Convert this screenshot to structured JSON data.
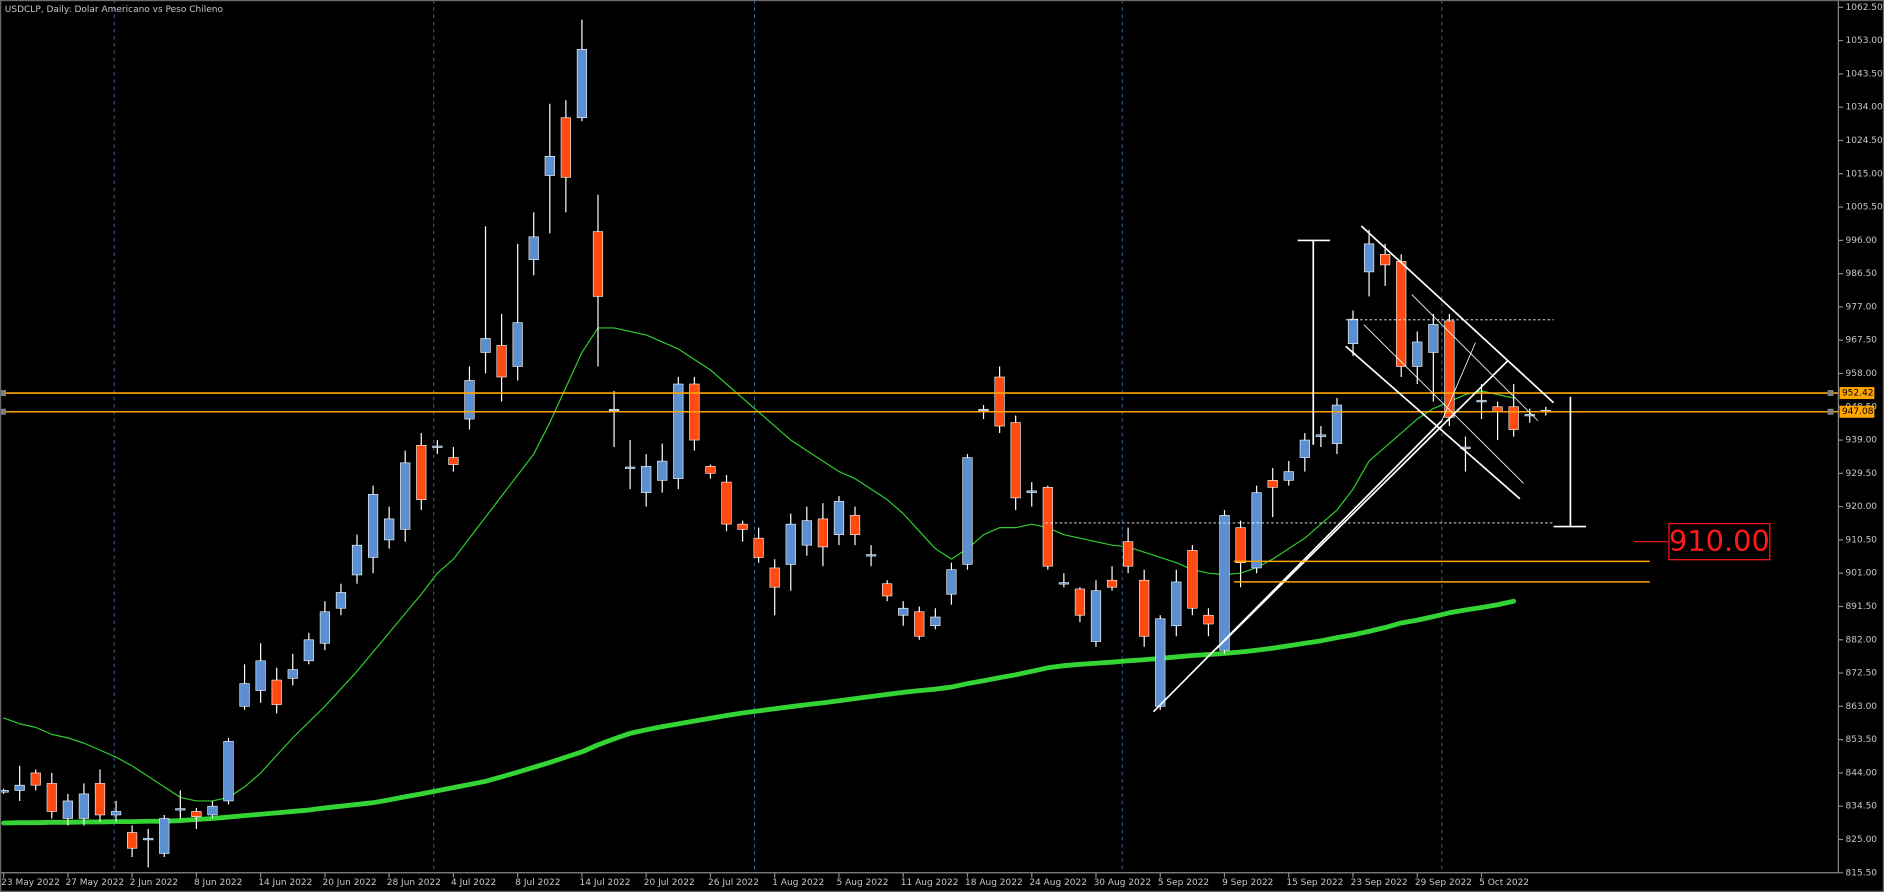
{
  "chart_data": {
    "type": "candlestick",
    "title": "USDCLP, Daily:  Dolar Americano vs Peso Chileno",
    "categories": [
      "23 May 2022",
      null,
      null,
      null,
      "27 May 2022",
      null,
      null,
      null,
      "2 Jun 2022",
      null,
      null,
      null,
      "8 Jun 2022",
      null,
      null,
      null,
      "14 Jun 2022",
      null,
      null,
      null,
      "20 Jun 2022",
      null,
      null,
      null,
      "28 Jun 2022",
      null,
      null,
      null,
      "4 Jul 2022",
      null,
      null,
      null,
      "8 Jul 2022",
      null,
      null,
      null,
      "14 Jul 2022",
      null,
      null,
      null,
      "20 Jul 2022",
      null,
      null,
      null,
      "26 Jul 2022",
      null,
      null,
      null,
      "1 Aug 2022",
      null,
      null,
      null,
      "5 Aug 2022",
      null,
      null,
      null,
      "11 Aug 2022",
      null,
      null,
      null,
      "18 Aug 2022",
      null,
      null,
      null,
      "24 Aug 2022",
      null,
      null,
      null,
      "30 Aug 2022",
      null,
      null,
      null,
      "5 Sep 2022",
      null,
      null,
      null,
      "9 Sep 2022",
      null,
      null,
      null,
      "15 Sep 2022",
      null,
      null,
      null,
      "23 Sep 2022",
      null,
      null,
      null,
      "29 Sep 2022",
      null,
      null,
      null,
      "5 Oct 2022",
      null,
      null,
      null,
      null
    ],
    "open": [
      838.5,
      839,
      844,
      841,
      831,
      831,
      841,
      832,
      827,
      825,
      821,
      833.5,
      833,
      832,
      836,
      863,
      867.5,
      870.5,
      871,
      876,
      881,
      891,
      900.5,
      905.5,
      910.5,
      913.5,
      937.5,
      937,
      934,
      945,
      964,
      966,
      960,
      990.5,
      1014.5,
      1031,
      1031,
      998.5,
      947.5,
      931,
      924,
      927.5,
      928,
      955,
      931.5,
      927,
      915,
      911,
      902.5,
      903.5,
      909,
      916.5,
      912,
      917.5,
      906,
      898,
      889,
      890,
      886,
      895,
      903.5,
      947.5,
      957,
      944,
      924,
      925.5,
      898,
      896.5,
      881.5,
      899,
      910,
      899,
      863,
      886,
      907.5,
      889,
      879,
      914,
      902.5,
      927.5,
      927.5,
      934,
      940,
      938,
      966.5,
      987,
      992,
      990,
      960,
      964,
      973,
      936.5,
      950,
      948.5,
      948.5,
      946,
      947
    ],
    "high": [
      839.5,
      846,
      845,
      844,
      838,
      841,
      845,
      836,
      829,
      828,
      832,
      839,
      834,
      836,
      854,
      875,
      881,
      874,
      878,
      884,
      893,
      898,
      912,
      926,
      920,
      936,
      941,
      939,
      937,
      960,
      1000,
      975,
      995,
      1004,
      1035,
      1036,
      1059,
      1009,
      953,
      939,
      935,
      938,
      957,
      957,
      932,
      929,
      916,
      914,
      905,
      918,
      920,
      921,
      923,
      920,
      909,
      899,
      893,
      891.5,
      891,
      904,
      935,
      949,
      960,
      946,
      927,
      926,
      901,
      897,
      899,
      903,
      914,
      902,
      889,
      902,
      909,
      891,
      919,
      916,
      926,
      931,
      933,
      941,
      943,
      951,
      976,
      999,
      995,
      992,
      970,
      975,
      975,
      940,
      955,
      950,
      955,
      948,
      948.5
    ],
    "low": [
      838,
      836,
      839,
      831,
      829,
      829,
      830,
      830,
      820,
      817,
      820,
      831,
      828,
      831,
      835,
      862,
      864,
      861,
      869,
      875,
      879,
      889,
      898,
      901,
      908,
      910,
      919,
      935,
      930,
      942,
      958,
      950,
      956,
      986,
      998,
      1004,
      1030,
      960,
      937,
      925,
      920,
      924,
      925,
      936,
      928,
      913,
      910,
      904,
      889,
      896,
      906,
      903,
      909,
      909,
      903,
      893,
      886,
      882,
      885,
      892,
      902,
      945,
      941,
      919,
      920,
      902,
      897,
      887,
      880,
      896,
      901,
      880,
      862,
      883,
      889,
      883,
      878,
      897,
      901,
      917,
      926,
      930,
      937,
      935,
      963,
      980,
      983,
      957,
      955,
      950,
      943,
      930,
      945,
      939,
      940,
      944,
      946
    ],
    "close": [
      839,
      840.5,
      840.5,
      833,
      836,
      838,
      832,
      833,
      822.5,
      825.3,
      831,
      833.8,
      831.5,
      834.5,
      853,
      869.5,
      876,
      863.5,
      873.5,
      882,
      890,
      895.5,
      909,
      923.5,
      916.5,
      932.5,
      922,
      937.3,
      932,
      956,
      968,
      957,
      972.5,
      997,
      1020,
      1014,
      1050.5,
      980,
      947.8,
      931.3,
      931.5,
      933,
      955,
      939,
      929.5,
      915,
      913.5,
      905.5,
      897,
      915,
      916,
      908.5,
      921.5,
      912,
      906.3,
      894.5,
      891,
      883,
      888.5,
      902,
      934,
      947.8,
      943,
      922.5,
      924.5,
      903,
      898.3,
      889,
      896,
      897,
      903,
      883,
      888,
      898.5,
      891,
      886.5,
      917.5,
      904,
      924,
      925.5,
      930,
      939,
      940.5,
      949,
      973.5,
      995,
      989,
      960,
      967,
      972,
      945.5,
      937,
      950.3,
      947,
      942,
      946.3,
      947.5
    ],
    "up_color": "#5b8fd0",
    "down_color": "#ff4a12",
    "lines": [
      {
        "color": "#2ecc2e",
        "width": 1,
        "values": [
          859.7,
          858,
          857,
          855,
          854,
          852.5,
          850.5,
          848.5,
          846,
          843,
          840,
          837,
          836,
          836,
          837,
          840,
          844,
          849,
          854,
          858.5,
          863,
          868,
          873,
          878.5,
          884,
          889.5,
          895,
          901,
          905,
          911,
          917,
          923,
          929,
          935,
          944,
          954,
          964,
          971,
          971,
          970,
          969,
          967,
          965,
          962,
          959,
          955,
          951,
          947,
          943,
          939,
          936,
          933,
          930,
          928,
          925,
          922,
          918,
          913,
          908,
          905,
          908,
          912,
          914,
          914,
          915,
          914,
          912,
          911,
          910,
          909,
          908.5,
          907,
          905.5,
          904,
          902,
          901,
          900.6,
          901,
          902.6,
          905,
          908,
          911,
          915,
          919,
          925,
          933,
          937,
          941,
          945,
          948,
          950,
          952,
          953,
          952,
          951,
          null,
          null
        ]
      },
      {
        "color": "#33d433",
        "width": 4,
        "values": [
          829.7,
          829.8,
          829.8,
          829.9,
          829.9,
          830,
          830,
          830.1,
          830.1,
          830.2,
          830.2,
          830.4,
          830.7,
          831,
          831.4,
          831.8,
          832.2,
          832.6,
          833,
          833.4,
          834,
          834.5,
          835,
          835.5,
          836.3,
          837.2,
          838,
          838.9,
          839.8,
          840.7,
          841.6,
          842.9,
          844.2,
          845.6,
          847,
          848.5,
          850,
          852,
          853.7,
          855.3,
          856.3,
          857.2,
          858,
          858.8,
          859.6,
          860.4,
          861.1,
          861.7,
          862.3,
          862.9,
          863.5,
          864,
          864.6,
          865.2,
          865.8,
          866.4,
          867,
          867.5,
          867.9,
          868.5,
          869.5,
          870.3,
          871.2,
          872,
          873,
          874,
          874.6,
          875,
          875.3,
          875.6,
          876,
          876.3,
          876.7,
          877.1,
          877.5,
          877.8,
          878.1,
          878.5,
          879,
          879.6,
          880.3,
          881,
          881.7,
          882.6,
          883.4,
          884.4,
          885.5,
          886.8,
          887.6,
          888.6,
          889.7,
          890.5,
          891.2,
          892,
          893,
          null,
          null
        ]
      }
    ],
    "levels": [
      952.42,
      947.08
    ],
    "level_color": "#ffa500",
    "annotation": {
      "value": 910,
      "label": "910.00",
      "color": "#ff1a1a"
    },
    "ylim": [
      815.5,
      1064.6
    ],
    "yticks": [
      {
        "value": 1062.5,
        "label": "1062.50"
      },
      {
        "value": 1053,
        "label": "1053.00"
      },
      {
        "value": 1043.5,
        "label": "1043.50"
      },
      {
        "value": 1034,
        "label": "1034.00"
      },
      {
        "value": 1024.5,
        "label": "1024.50"
      },
      {
        "value": 1015,
        "label": "1015.00"
      },
      {
        "value": 1005.5,
        "label": "1005.50"
      },
      {
        "value": 996,
        "label": "996.00"
      },
      {
        "value": 986.5,
        "label": "986.50"
      },
      {
        "value": 977,
        "label": "977.00"
      },
      {
        "value": 967.5,
        "label": "967.50"
      },
      {
        "value": 958,
        "label": "958.00"
      },
      {
        "value": 948.5,
        "label": "948.50"
      },
      {
        "value": 939,
        "label": "939.00"
      },
      {
        "value": 929.5,
        "label": "929.50"
      },
      {
        "value": 920,
        "label": "920.00"
      },
      {
        "value": 910.5,
        "label": "910.50"
      },
      {
        "value": 901,
        "label": "901.00"
      },
      {
        "value": 891.5,
        "label": "891.50"
      },
      {
        "value": 882,
        "label": "882.00"
      },
      {
        "value": 872.5,
        "label": "872.50"
      },
      {
        "value": 863,
        "label": "863.00"
      },
      {
        "value": 853.5,
        "label": "853.50"
      },
      {
        "value": 844,
        "label": "844.00"
      },
      {
        "value": 834.5,
        "label": "834.50"
      },
      {
        "value": 825,
        "label": "825.00"
      },
      {
        "value": 815.5,
        "label": "815.50"
      }
    ]
  }
}
